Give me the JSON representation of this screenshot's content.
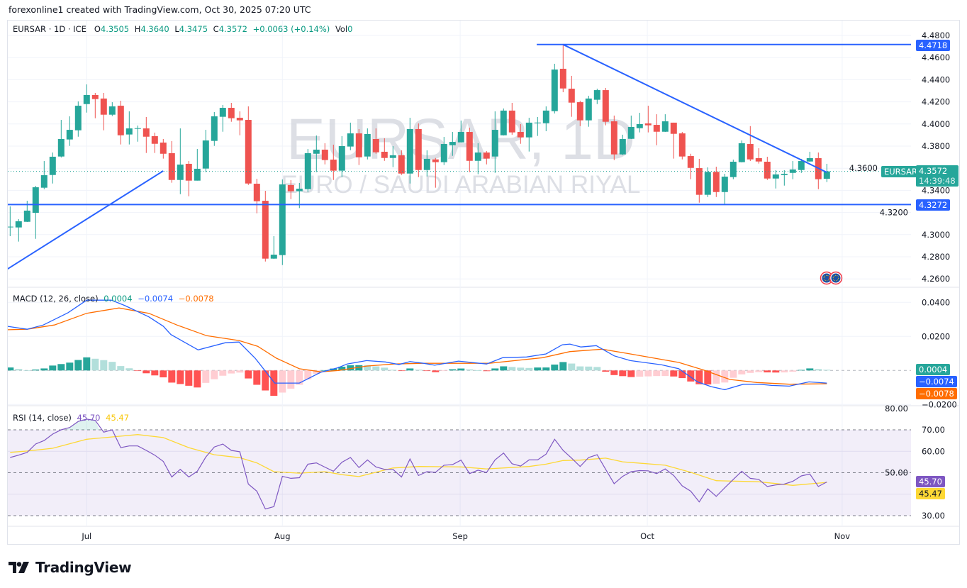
{
  "credit": "forexonline1 created with TradingView.com, Oct 30, 2025 07:20 UTC",
  "legend": {
    "symbol": "EURSAR · 1D · ICE",
    "o_label": "O",
    "o": "4.3505",
    "h_label": "H",
    "h": "4.3640",
    "l_label": "L",
    "l": "4.3475",
    "c_label": "C",
    "c": "4.3572",
    "change": "+0.0063 (+0.14%)",
    "vol_label": "Vol",
    "vol": "0"
  },
  "watermark": {
    "line1": "EURSAR, 1D",
    "line2": "EURO / SAUDI ARABIAN RIYAL"
  },
  "macd_legend": {
    "title": "MACD (12, 26, close)",
    "hist": "0.0004",
    "macd": "−0.0074",
    "signal": "−0.0078"
  },
  "rsi_legend": {
    "title": "RSI (14, close)",
    "rsi": "45.70",
    "ma": "45.47"
  },
  "price_tags": {
    "symbol_tag": "EURSAR",
    "last_price": "4.3572",
    "countdown": "14:39:48",
    "resistance": "4.4718",
    "support": "4.3272"
  },
  "colors": {
    "up": "#26a69a",
    "down": "#ef5350",
    "drawing": "#2962ff",
    "macd": "#2962ff",
    "signal": "#ff6d00",
    "rsi": "#7e57c2",
    "rsi_ma": "#fdd835"
  },
  "branding": "TradingView",
  "chart_data": [
    {
      "type": "candlestick",
      "title": "EURSAR · 1D · ICE",
      "ylim": [
        4.26,
        4.48
      ],
      "y_ticks": [
        "4.4800",
        "4.4600",
        "4.4400",
        "4.4200",
        "4.4000",
        "4.3800",
        "4.3600",
        "4.3400",
        "4.3200",
        "4.3000",
        "4.2800",
        "4.2600"
      ],
      "x_labels": [
        {
          "label": "Jul",
          "index": 9
        },
        {
          "label": "Aug",
          "index": 32
        },
        {
          "label": "Sep",
          "index": 52.9
        },
        {
          "label": "Oct",
          "index": 74.9
        },
        {
          "label": "Nov",
          "index": 97.8
        }
      ],
      "ohlc": [
        [
          4.3069,
          4.3255,
          4.2986,
          4.3072
        ],
        [
          4.3065,
          4.314,
          4.2937,
          4.3121
        ],
        [
          4.3116,
          4.3306,
          4.3114,
          4.3217
        ],
        [
          4.3197,
          4.3441,
          4.2962,
          4.3428
        ],
        [
          4.3424,
          4.3665,
          4.3411,
          4.3537
        ],
        [
          4.3539,
          4.3742,
          4.3462,
          4.3704
        ],
        [
          4.3706,
          4.4037,
          4.3697,
          4.3864
        ],
        [
          4.386,
          4.4069,
          4.3802,
          4.3947
        ],
        [
          4.3943,
          4.4204,
          4.3885,
          4.4165
        ],
        [
          4.418,
          4.4358,
          4.4103,
          4.4262
        ],
        [
          4.4262,
          4.4281,
          4.4052,
          4.4225
        ],
        [
          4.423,
          4.4281,
          4.3943,
          4.4084
        ],
        [
          4.4084,
          4.4197,
          4.4071,
          4.4159
        ],
        [
          4.4165,
          4.421,
          4.3815,
          4.3898
        ],
        [
          4.3905,
          4.4114,
          4.3815,
          4.396
        ],
        [
          4.396,
          4.3986,
          4.384,
          4.3962
        ],
        [
          4.396,
          4.4063,
          4.3738,
          4.3885
        ],
        [
          4.389,
          4.3922,
          4.3738,
          4.3821
        ],
        [
          4.3832,
          4.3864,
          4.3687,
          4.3731
        ],
        [
          4.3736,
          4.3845,
          4.3469,
          4.3494
        ],
        [
          4.3494,
          4.396,
          4.3366,
          4.3633
        ],
        [
          4.364,
          4.3665,
          4.3347,
          4.3488
        ],
        [
          4.3488,
          4.3774,
          4.3488,
          4.3595
        ],
        [
          4.3597,
          4.3947,
          4.3565,
          4.3851
        ],
        [
          4.3847,
          4.4108,
          4.3802,
          4.4069
        ],
        [
          4.4065,
          4.4172,
          4.393,
          4.4146
        ],
        [
          4.4146,
          4.4191,
          4.402,
          4.4052
        ],
        [
          4.4056,
          4.4114,
          4.3898,
          4.4033
        ],
        [
          4.4037,
          4.4159,
          4.3449,
          4.3462
        ],
        [
          4.346,
          4.3505,
          4.3193,
          4.3302
        ],
        [
          4.3306,
          4.3396,
          4.2757,
          4.2783
        ],
        [
          4.2783,
          4.2986,
          4.2781,
          4.2819
        ],
        [
          4.2815,
          4.3499,
          4.2725,
          4.3454
        ],
        [
          4.3448,
          4.3492,
          4.3321,
          4.3392
        ],
        [
          4.3392,
          4.3467,
          4.324,
          4.3415
        ],
        [
          4.3411,
          4.3774,
          4.3385,
          4.3736
        ],
        [
          4.3731,
          4.3896,
          4.3565,
          4.3768
        ],
        [
          4.3768,
          4.3826,
          4.3635,
          4.3674
        ],
        [
          4.3678,
          4.3813,
          4.3494,
          4.3578
        ],
        [
          4.3578,
          4.389,
          4.352,
          4.38
        ],
        [
          4.3796,
          4.4012,
          4.3763,
          4.3915
        ],
        [
          4.3915,
          4.3954,
          4.3629,
          4.3699
        ],
        [
          4.3706,
          4.396,
          4.368,
          4.3909
        ],
        [
          4.3864,
          4.396,
          4.3731,
          4.3744
        ],
        [
          4.3749,
          4.3871,
          4.3667,
          4.3693
        ],
        [
          4.3693,
          4.38,
          4.361,
          4.3717
        ],
        [
          4.3717,
          4.3762,
          4.3539,
          4.3552
        ],
        [
          4.3552,
          4.4056,
          4.3462,
          4.3954
        ],
        [
          4.3954,
          4.4005,
          4.352,
          4.3584
        ],
        [
          4.3584,
          4.3762,
          4.3526,
          4.3685
        ],
        [
          4.368,
          4.3693,
          4.3424,
          4.3655
        ],
        [
          4.3655,
          4.3883,
          4.3629,
          4.3819
        ],
        [
          4.3808,
          4.3928,
          4.3712,
          4.3838
        ],
        [
          4.3834,
          4.4031,
          4.3832,
          4.3928
        ],
        [
          4.3928,
          4.3967,
          4.3565,
          4.3667
        ],
        [
          4.3667,
          4.3826,
          4.3546,
          4.3742
        ],
        [
          4.3742,
          4.3755,
          4.3635,
          4.3687
        ],
        [
          4.3706,
          4.4114,
          4.3558,
          4.3947
        ],
        [
          4.3898,
          4.414,
          4.3896,
          4.4121
        ],
        [
          4.4121,
          4.4191,
          4.3903,
          4.3924
        ],
        [
          4.3928,
          4.3999,
          4.3821,
          4.3879
        ],
        [
          4.3879,
          4.4056,
          4.3751,
          4.4012
        ],
        [
          4.401,
          4.4063,
          4.3892,
          4.4013
        ],
        [
          4.4007,
          4.4159,
          4.3935,
          4.4121
        ],
        [
          4.4116,
          4.4544,
          4.4095,
          4.4492
        ],
        [
          4.4499,
          4.4718,
          4.4287,
          4.4321
        ],
        [
          4.4319,
          4.4435,
          4.4065,
          4.4193
        ],
        [
          4.4197,
          4.421,
          4.3981,
          4.4033
        ],
        [
          4.4033,
          4.4255,
          4.3975,
          4.423
        ],
        [
          4.4219,
          4.4319,
          4.418,
          4.4306
        ],
        [
          4.4306,
          4.4326,
          4.3988,
          4.402
        ],
        [
          4.4024,
          4.4076,
          4.3674,
          4.3725
        ],
        [
          4.3725,
          4.3903,
          4.3719,
          4.3864
        ],
        [
          4.3866,
          4.4076,
          4.3864,
          4.3973
        ],
        [
          4.3962,
          4.4101,
          4.3924,
          4.3999
        ],
        [
          4.4005,
          4.4165,
          4.3924,
          4.3988
        ],
        [
          4.3992,
          4.4088,
          4.3808,
          4.393
        ],
        [
          4.393,
          4.4088,
          4.3928,
          4.4024
        ],
        [
          4.4012,
          4.4012,
          4.3687,
          4.3911
        ],
        [
          4.3915,
          4.3928,
          4.368,
          4.3706
        ],
        [
          4.371,
          4.3731,
          4.3501,
          4.3603
        ],
        [
          4.3601,
          4.3685,
          4.3289,
          4.336
        ],
        [
          4.336,
          4.3608,
          4.334,
          4.3567
        ],
        [
          4.3567,
          4.3614,
          4.334,
          4.3385
        ],
        [
          4.3385,
          4.355,
          4.327,
          4.3524
        ],
        [
          4.352,
          4.3678,
          4.3501,
          4.3659
        ],
        [
          4.3655,
          4.3851,
          4.3653,
          4.3826
        ],
        [
          4.3819,
          4.3981,
          4.3665,
          4.368
        ],
        [
          4.3691,
          4.3781,
          4.3642,
          4.3661
        ],
        [
          4.3659,
          4.3704,
          4.3494,
          4.3507
        ],
        [
          4.3507,
          4.3582,
          4.3417,
          4.3544
        ],
        [
          4.3539,
          4.3582,
          4.3443,
          4.355
        ],
        [
          4.3558,
          4.3665,
          4.3501,
          4.3589
        ],
        [
          4.3584,
          4.3685,
          4.3558,
          4.3665
        ],
        [
          4.3661,
          4.3749,
          4.3659,
          4.3691
        ],
        [
          4.3691,
          4.3742,
          4.3411,
          4.3501
        ],
        [
          4.3505,
          4.364,
          4.3475,
          4.3572
        ]
      ],
      "drawings": [
        {
          "type": "horizontal_ray",
          "price": 4.4718,
          "from_index": 61.9
        },
        {
          "type": "horizontal_line",
          "price": 4.3272
        },
        {
          "type": "trendline",
          "from": [
            -0.4,
            4.2685
          ],
          "to": [
            18.0,
            4.3576
          ]
        },
        {
          "type": "trendline",
          "from": [
            65.0,
            4.4718
          ],
          "to": [
            96.0,
            4.3563
          ]
        }
      ]
    },
    {
      "type": "line",
      "title": "MACD (12, 26, close)",
      "ylim": [
        -0.021,
        0.045
      ],
      "y_ticks": [
        "0.0400",
        "0.0200",
        "−0.0200"
      ],
      "macd_points": [
        [
          -0.4,
          0.026
        ],
        [
          2.0,
          0.0242
        ],
        [
          3.9,
          0.0267
        ],
        [
          6.8,
          0.0339
        ],
        [
          9.0,
          0.0413
        ],
        [
          11.9,
          0.0413
        ],
        [
          13.5,
          0.0381
        ],
        [
          16.3,
          0.0315
        ],
        [
          18.0,
          0.026
        ],
        [
          18.9,
          0.0211
        ],
        [
          22.1,
          0.0121
        ],
        [
          25.3,
          0.0163
        ],
        [
          26.9,
          0.0167
        ],
        [
          28.8,
          0.0072
        ],
        [
          31.1,
          -0.0074
        ],
        [
          34.0,
          -0.0074
        ],
        [
          36.5,
          -0.0011
        ],
        [
          38.6,
          0.0017
        ],
        [
          39.6,
          0.0038
        ],
        [
          41.9,
          0.0058
        ],
        [
          44.1,
          0.005
        ],
        [
          45.7,
          0.0035
        ],
        [
          47.0,
          0.0052
        ],
        [
          48.6,
          0.0042
        ],
        [
          49.9,
          0.0031
        ],
        [
          52.7,
          0.0055
        ],
        [
          56.0,
          0.0038
        ],
        [
          57.9,
          0.0075
        ],
        [
          60.7,
          0.0079
        ],
        [
          63.0,
          0.0097
        ],
        [
          64.9,
          0.0151
        ],
        [
          65.8,
          0.0155
        ],
        [
          67.1,
          0.0138
        ],
        [
          68.9,
          0.0146
        ],
        [
          71.0,
          0.0086
        ],
        [
          72.9,
          0.0058
        ],
        [
          76.6,
          0.0033
        ],
        [
          78.6,
          0.001
        ],
        [
          80.8,
          -0.0067
        ],
        [
          82.4,
          -0.0095
        ],
        [
          84.0,
          -0.0113
        ],
        [
          86.2,
          -0.0081
        ],
        [
          88.1,
          -0.0081
        ],
        [
          89.5,
          -0.0088
        ],
        [
          91.6,
          -0.0092
        ],
        [
          93.9,
          -0.0067
        ],
        [
          96.0,
          -0.0074
        ]
      ],
      "signal_points": [
        [
          -0.4,
          0.0239
        ],
        [
          2.0,
          0.0242
        ],
        [
          5.2,
          0.0267
        ],
        [
          9.0,
          0.0336
        ],
        [
          12.8,
          0.0367
        ],
        [
          16.3,
          0.0336
        ],
        [
          19.6,
          0.0267
        ],
        [
          23.1,
          0.0204
        ],
        [
          26.9,
          0.0176
        ],
        [
          29.1,
          0.0142
        ],
        [
          31.3,
          0.0072
        ],
        [
          34.0,
          0.001
        ],
        [
          36.5,
          -0.0008
        ],
        [
          38.6,
          0.0
        ],
        [
          41.9,
          0.0026
        ],
        [
          45.1,
          0.0038
        ],
        [
          48.6,
          0.0042
        ],
        [
          52.7,
          0.0042
        ],
        [
          56.3,
          0.0042
        ],
        [
          62.6,
          0.0075
        ],
        [
          65.8,
          0.0111
        ],
        [
          69.6,
          0.0125
        ],
        [
          72.9,
          0.0097
        ],
        [
          78.6,
          0.0047
        ],
        [
          81.5,
          0.0003
        ],
        [
          84.6,
          -0.0053
        ],
        [
          87.8,
          -0.0071
        ],
        [
          91.6,
          -0.0081
        ],
        [
          96.0,
          -0.0078
        ]
      ],
      "histogram": "macd - signal"
    },
    {
      "type": "line",
      "title": "RSI (14, close)",
      "ylim": [
        25,
        81
      ],
      "y_ticks": [
        "80.00",
        "70.00",
        "60.00",
        "50.00",
        "30.00"
      ],
      "bands": [
        70,
        50,
        30
      ],
      "rsi": [
        57.1,
        58.2,
        59.5,
        63.4,
        65.0,
        68.0,
        70.0,
        71.1,
        73.9,
        75.0,
        74.4,
        68.9,
        70.0,
        61.7,
        62.5,
        62.5,
        60.4,
        58.2,
        55.3,
        48.0,
        51.6,
        48.0,
        50.7,
        57.3,
        62.0,
        63.4,
        60.4,
        59.8,
        44.7,
        41.4,
        33.1,
        34.2,
        48.3,
        47.4,
        47.7,
        54.0,
        54.6,
        52.6,
        50.7,
        54.9,
        57.1,
        52.4,
        56.0,
        52.7,
        51.6,
        51.6,
        48.0,
        56.4,
        48.7,
        50.5,
        50.2,
        53.5,
        53.8,
        55.9,
        49.6,
        51.2,
        50.1,
        56.0,
        59.2,
        54.2,
        53.1,
        56.0,
        56.0,
        58.7,
        65.6,
        60.4,
        56.8,
        52.9,
        57.1,
        58.4,
        51.6,
        44.9,
        48.3,
        50.5,
        51.0,
        50.9,
        49.6,
        51.8,
        48.7,
        43.9,
        41.4,
        36.4,
        42.5,
        39.0,
        43.0,
        46.9,
        50.7,
        47.4,
        46.9,
        43.6,
        44.3,
        44.7,
        46.0,
        48.5,
        49.4,
        43.6,
        45.7
      ],
      "rsi_ma_points": [
        [
          0,
          59.5
        ],
        [
          2,
          60.1
        ],
        [
          5,
          61.4
        ],
        [
          9,
          65.6
        ],
        [
          12,
          66.7
        ],
        [
          15,
          67.8
        ],
        [
          18,
          66.4
        ],
        [
          21,
          61.7
        ],
        [
          24,
          58.4
        ],
        [
          27,
          57.0
        ],
        [
          29,
          54.6
        ],
        [
          31,
          50.5
        ],
        [
          34,
          49.8
        ],
        [
          37,
          50.5
        ],
        [
          39,
          49.1
        ],
        [
          41,
          48.2
        ],
        [
          45,
          52.2
        ],
        [
          48,
          52.9
        ],
        [
          53,
          52.7
        ],
        [
          56,
          51.8
        ],
        [
          61,
          52.9
        ],
        [
          63,
          54.0
        ],
        [
          65,
          55.7
        ],
        [
          67,
          55.9
        ],
        [
          70,
          56.8
        ],
        [
          72,
          55.1
        ],
        [
          77,
          53.5
        ],
        [
          80,
          50.2
        ],
        [
          83,
          46.3
        ],
        [
          88,
          45.8
        ],
        [
          92,
          44.1
        ],
        [
          96,
          45.5
        ]
      ]
    }
  ]
}
